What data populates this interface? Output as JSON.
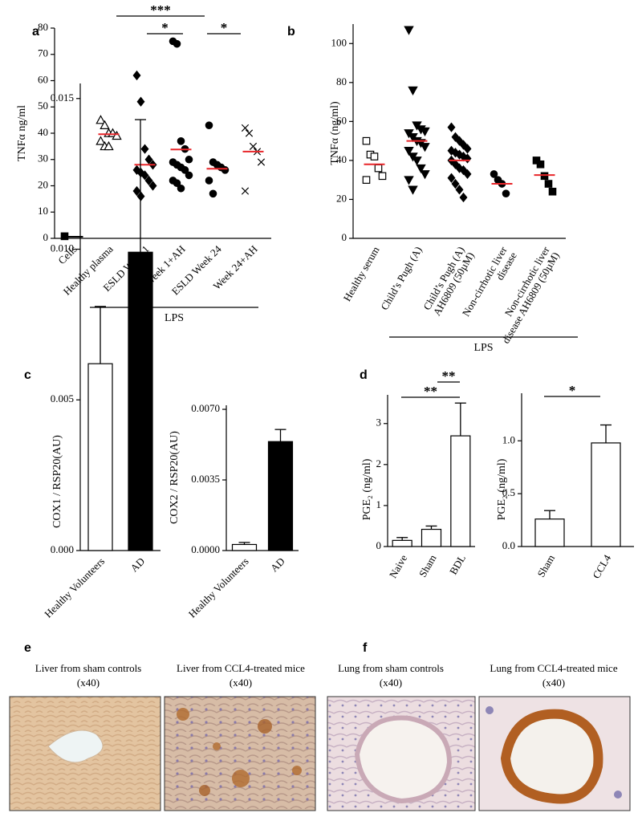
{
  "chart_data": [
    {
      "type": "dotplot",
      "panel": "a",
      "y_label": "TNFα ng/ml",
      "ylim": [
        0,
        80
      ],
      "yticks": [
        0,
        10,
        20,
        30,
        40,
        50,
        60,
        70,
        80
      ],
      "group_label": "LPS",
      "annotations": [
        "***",
        "*",
        "*"
      ],
      "groups": [
        {
          "category": "Cells",
          "marker": "square",
          "values": [
            0.8
          ],
          "mean": 0.6,
          "mean_color": "#000000"
        },
        {
          "category": "Healthy plasma",
          "marker": "triangle-open",
          "values": [
            45,
            43,
            40,
            40,
            39,
            37,
            35,
            35
          ],
          "mean": 39.6,
          "mean_color": "#e8262a"
        },
        {
          "category": "ESLD Week 1",
          "marker": "diamond",
          "values": [
            62,
            52,
            34,
            30,
            28,
            26,
            25,
            24,
            22,
            20,
            18,
            16
          ],
          "mean": 28,
          "mean_color": "#e8262a"
        },
        {
          "category": "Week 1+AH",
          "marker": "circle",
          "values": [
            75,
            74,
            37,
            34,
            30,
            29,
            28,
            27,
            26,
            24,
            22,
            21,
            19
          ],
          "mean": 33.8,
          "mean_color": "#e8262a"
        },
        {
          "category": "ESLD Week 24",
          "marker": "circle",
          "values": [
            43,
            29,
            28,
            27,
            26,
            22,
            17
          ],
          "mean": 26.5,
          "mean_color": "#e8262a"
        },
        {
          "category": "Week 24+AH",
          "marker": "x",
          "values": [
            42,
            40,
            35,
            33,
            29,
            18
          ],
          "mean": 33,
          "mean_color": "#e8262a"
        }
      ]
    },
    {
      "type": "dotplot",
      "panel": "b",
      "y_label": "TNFα (ng/ml)",
      "ylim": [
        0,
        110
      ],
      "yticks": [
        0,
        20,
        40,
        60,
        80,
        100
      ],
      "group_label": "LPS",
      "groups": [
        {
          "category": [
            "Healthy serum"
          ],
          "marker": "square-open",
          "values": [
            50,
            43,
            42,
            36,
            32,
            30
          ],
          "mean": 38,
          "mean_color": "#e8262a"
        },
        {
          "category": [
            "Child’s Pugh (A)"
          ],
          "marker": "triangle-down",
          "values": [
            107,
            76,
            58,
            56,
            55,
            54,
            52,
            50,
            49,
            47,
            45,
            42,
            40,
            36,
            33,
            30,
            25
          ],
          "mean": 50,
          "mean_color": "#e8262a"
        },
        {
          "category": [
            "Child’s Pugh (A)",
            "AH6809 (50µM)"
          ],
          "marker": "diamond",
          "values": [
            57,
            52,
            50,
            48,
            46,
            45,
            44,
            43,
            42,
            41,
            40,
            38,
            36,
            35,
            33,
            31,
            28,
            25,
            21
          ],
          "mean": 40,
          "mean_color": "#e8262a"
        },
        {
          "category": [
            "Non-cirrhotic liver",
            "disease"
          ],
          "marker": "circle",
          "values": [
            33,
            30,
            28,
            23
          ],
          "mean": 28,
          "mean_color": "#e8262a"
        },
        {
          "category": [
            "Non-cirrhotic liver",
            "disease AH6809 (50µM)"
          ],
          "marker": "square",
          "values": [
            40,
            38,
            32,
            28,
            24
          ],
          "mean": 32.5,
          "mean_color": "#e8262a"
        }
      ]
    },
    {
      "type": "bar",
      "panel": "c",
      "y_label": "COX1 / RSP20(AU)",
      "ylim": [
        0,
        0.0155
      ],
      "yticks": [
        {
          "value": 0,
          "label": "0.000"
        },
        {
          "value": 0.005,
          "label": "0.005"
        },
        {
          "value": 0.01,
          "label": "0.010"
        },
        {
          "value": 0.015,
          "label": "0.015"
        }
      ],
      "categories": [
        "Healthy Volunteers",
        "AD"
      ],
      "values": [
        0.0062,
        0.0099
      ],
      "errors": [
        0.0019,
        0.0044
      ],
      "colors": [
        "#ffffff",
        "#000000"
      ]
    },
    {
      "type": "bar",
      "y_label": "COX2 / RSP20(AU)",
      "ylim": [
        0,
        0.0072
      ],
      "yticks": [
        {
          "value": 0,
          "label": "0.0000"
        },
        {
          "value": 0.0035,
          "label": "0.0035"
        },
        {
          "value": 0.007,
          "label": "0.0070"
        }
      ],
      "categories": [
        "Healthy Volunteers",
        "AD"
      ],
      "values": [
        0.0003,
        0.0054
      ],
      "errors": [
        0.0001,
        0.0006
      ],
      "colors": [
        "#ffffff",
        "#000000"
      ]
    },
    {
      "type": "bar",
      "panel": "d",
      "y_label": "PGE₂ (ng/ml)",
      "ylim": [
        0,
        3.7
      ],
      "yticks": [
        0,
        1,
        2,
        3
      ],
      "annotations": [
        "**",
        "**"
      ],
      "categories": [
        "Naive",
        "Sham",
        "BDL"
      ],
      "values": [
        0.15,
        0.42,
        2.7
      ],
      "errors": [
        0.07,
        0.08,
        0.8
      ],
      "colors": [
        "#ffffff",
        "#ffffff",
        "#ffffff"
      ]
    },
    {
      "type": "bar",
      "y_label": "PGE₂ (ng/ml)",
      "ylim": [
        0,
        1.45
      ],
      "yticks": [
        {
          "value": 0,
          "label": "0.0"
        },
        {
          "value": 0.5,
          "label": "0.5"
        },
        {
          "value": 1,
          "label": "1.0"
        }
      ],
      "annotations": [
        "*"
      ],
      "categories": [
        "Sham",
        "CCL4"
      ],
      "values": [
        0.26,
        0.98
      ],
      "errors": [
        0.08,
        0.17
      ],
      "colors": [
        "#ffffff",
        "#ffffff"
      ]
    }
  ],
  "image_panels": [
    {
      "panel": "e",
      "captions": [
        [
          "Liver from sham controls",
          "(x40)"
        ],
        [
          "Liver from CCL4-treated mice",
          "(x40)"
        ]
      ]
    },
    {
      "panel": "f",
      "captions": [
        [
          "Lung from sham controls",
          "(x40)"
        ],
        [
          "Lung from CCL4-treated mice",
          "(x40)"
        ]
      ]
    }
  ]
}
